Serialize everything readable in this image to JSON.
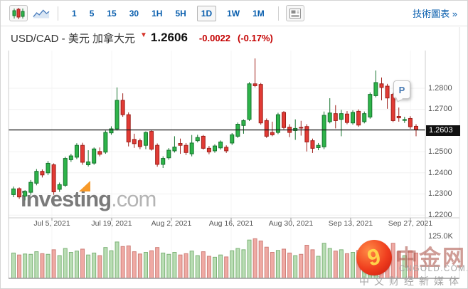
{
  "toolbar": {
    "chart_type_buttons": [
      {
        "name": "candlestick",
        "selected": true
      },
      {
        "name": "line-area",
        "selected": false
      }
    ],
    "intervals": [
      "1",
      "5",
      "15",
      "30",
      "1H",
      "5H",
      "1D",
      "1W",
      "1M"
    ],
    "selected_interval": "1D",
    "news_panel_button": "news-layout",
    "tech_chart_link": "技術圖表 »"
  },
  "quote": {
    "pair_title": "USD/CAD - 美元 加拿大元",
    "direction_arrow": "▼",
    "last_price": "1.2606",
    "change": "-0.0022",
    "change_pct": "(-0.17%)"
  },
  "watermarks": {
    "investing": {
      "part1": "investing",
      "part2": ".com"
    },
    "cngold": {
      "swirl": "9",
      "title": "中金网",
      "domain": "CNGOLD.COM.CN",
      "tagline": "中文财经新媒体"
    }
  },
  "chart_data": {
    "type": "candlestick",
    "title": "USD/CAD daily candlestick chart with volume",
    "current_price_label": "1.2603",
    "marker_label": "P",
    "y_axis_labels": [
      {
        "text": "1.2800",
        "price": 1.28
      },
      {
        "text": "1.2700",
        "price": 1.27
      },
      {
        "text": "1.2500",
        "price": 1.25
      },
      {
        "text": "1.2400",
        "price": 1.24
      },
      {
        "text": "1.2300",
        "price": 1.23
      },
      {
        "text": "1.2200",
        "price": 1.22
      }
    ],
    "price_gridlines": [
      1.28,
      1.27,
      1.26,
      1.25,
      1.24,
      1.23,
      1.22
    ],
    "ylim": [
      1.2195,
      1.2985
    ],
    "x_axis_labels": [
      {
        "text": "Jul 5, 2021"
      },
      {
        "text": "Jul 19, 2021"
      },
      {
        "text": "Aug 2, 2021"
      },
      {
        "text": "Aug 16, 2021"
      },
      {
        "text": "Aug 30, 2021"
      },
      {
        "text": "Sep 13, 2021"
      },
      {
        "text": "Sep 27, 2021"
      }
    ],
    "volume_axis_label": "125.0K",
    "current_price": 1.2603,
    "candle_order": [
      "open",
      "high",
      "low",
      "close",
      "volume_k"
    ],
    "candles": [
      [
        1.2297,
        1.2335,
        1.2285,
        1.2324,
        78
      ],
      [
        1.2325,
        1.2331,
        1.2277,
        1.2286,
        72
      ],
      [
        1.229,
        1.2318,
        1.227,
        1.2312,
        75
      ],
      [
        1.2308,
        1.2366,
        1.2296,
        1.2355,
        74
      ],
      [
        1.2351,
        1.2418,
        1.2341,
        1.2407,
        82
      ],
      [
        1.2407,
        1.2416,
        1.2378,
        1.239,
        76
      ],
      [
        1.24,
        1.2456,
        1.2389,
        1.2445,
        74
      ],
      [
        1.2438,
        1.2445,
        1.2296,
        1.231,
        88
      ],
      [
        1.2322,
        1.2354,
        1.231,
        1.2344,
        70
      ],
      [
        1.2341,
        1.2476,
        1.2333,
        1.2468,
        92
      ],
      [
        1.2462,
        1.249,
        1.2452,
        1.248,
        80
      ],
      [
        1.2474,
        1.254,
        1.2465,
        1.253,
        84
      ],
      [
        1.253,
        1.2542,
        1.2438,
        1.245,
        90
      ],
      [
        1.2438,
        1.2507,
        1.243,
        1.2452,
        72
      ],
      [
        1.2446,
        1.252,
        1.2438,
        1.2513,
        78
      ],
      [
        1.2501,
        1.252,
        1.2478,
        1.2488,
        70
      ],
      [
        1.2498,
        1.26,
        1.249,
        1.2591,
        95
      ],
      [
        1.2589,
        1.262,
        1.258,
        1.2608,
        85
      ],
      [
        1.2608,
        1.2804,
        1.26,
        1.2743,
        112
      ],
      [
        1.2743,
        1.2776,
        1.2665,
        1.2675,
        98
      ],
      [
        1.2675,
        1.2686,
        1.2525,
        1.2546,
        100
      ],
      [
        1.2558,
        1.2585,
        1.2518,
        1.2538,
        82
      ],
      [
        1.2552,
        1.2562,
        1.2512,
        1.2524,
        75
      ],
      [
        1.253,
        1.2596,
        1.2512,
        1.2591,
        80
      ],
      [
        1.2596,
        1.2601,
        1.2505,
        1.2512,
        85
      ],
      [
        1.253,
        1.2539,
        1.2429,
        1.244,
        95
      ],
      [
        1.244,
        1.2478,
        1.2423,
        1.2468,
        78
      ],
      [
        1.2471,
        1.2517,
        1.2462,
        1.2507,
        74
      ],
      [
        1.2504,
        1.2573,
        1.2496,
        1.2522,
        80
      ],
      [
        1.2539,
        1.2562,
        1.249,
        1.253,
        72
      ],
      [
        1.253,
        1.2541,
        1.2484,
        1.2496,
        76
      ],
      [
        1.249,
        1.2579,
        1.2478,
        1.2541,
        84
      ],
      [
        1.2552,
        1.258,
        1.2544,
        1.2567,
        70
      ],
      [
        1.2573,
        1.2579,
        1.251,
        1.2516,
        82
      ],
      [
        1.2516,
        1.2527,
        1.2488,
        1.2499,
        68
      ],
      [
        1.2504,
        1.2535,
        1.2495,
        1.2527,
        65
      ],
      [
        1.2518,
        1.2553,
        1.251,
        1.2546,
        72
      ],
      [
        1.2521,
        1.253,
        1.2494,
        1.2504,
        66
      ],
      [
        1.2541,
        1.2588,
        1.2532,
        1.258,
        85
      ],
      [
        1.2573,
        1.2638,
        1.2565,
        1.263,
        92
      ],
      [
        1.2624,
        1.2653,
        1.2585,
        1.2647,
        88
      ],
      [
        1.2653,
        1.2829,
        1.2645,
        1.2821,
        118
      ],
      [
        1.2821,
        1.2941,
        1.2805,
        1.2812,
        122
      ],
      [
        1.2818,
        1.2825,
        1.2628,
        1.2636,
        115
      ],
      [
        1.2647,
        1.2657,
        1.2565,
        1.2573,
        96
      ],
      [
        1.2591,
        1.2642,
        1.2573,
        1.258,
        80
      ],
      [
        1.2591,
        1.2684,
        1.2583,
        1.2675,
        86
      ],
      [
        1.2686,
        1.2692,
        1.2606,
        1.2614,
        90
      ],
      [
        1.2616,
        1.263,
        1.2569,
        1.2591,
        78
      ],
      [
        1.26,
        1.2653,
        1.2556,
        1.261,
        70
      ],
      [
        1.2615,
        1.2646,
        1.2576,
        1.2612,
        74
      ],
      [
        1.2619,
        1.263,
        1.2501,
        1.2546,
        102
      ],
      [
        1.2552,
        1.2562,
        1.2494,
        1.2516,
        88
      ],
      [
        1.2519,
        1.2541,
        1.2507,
        1.253,
        68
      ],
      [
        1.2523,
        1.269,
        1.2512,
        1.2672,
        108
      ],
      [
        1.2642,
        1.2753,
        1.2634,
        1.2683,
        92
      ],
      [
        1.268,
        1.272,
        1.261,
        1.2647,
        84
      ],
      [
        1.2653,
        1.2698,
        1.2573,
        1.268,
        88
      ],
      [
        1.2678,
        1.2692,
        1.263,
        1.2638,
        76
      ],
      [
        1.2636,
        1.2696,
        1.2628,
        1.2686,
        80
      ],
      [
        1.2691,
        1.27,
        1.2618,
        1.2626,
        86
      ],
      [
        1.2642,
        1.269,
        1.2634,
        1.268,
        74
      ],
      [
        1.2664,
        1.278,
        1.2656,
        1.2771,
        105
      ],
      [
        1.2765,
        1.2884,
        1.2757,
        1.2827,
        112
      ],
      [
        1.2821,
        1.2851,
        1.2743,
        1.2804,
        95
      ],
      [
        1.281,
        1.2821,
        1.2703,
        1.2754,
        90
      ],
      [
        1.2771,
        1.2778,
        1.264,
        1.2647,
        108
      ],
      [
        1.2667,
        1.2709,
        1.2642,
        1.266,
        82
      ],
      [
        1.2648,
        1.2665,
        1.2636,
        1.2652,
        70
      ],
      [
        1.2657,
        1.2668,
        1.2608,
        1.2618,
        85
      ],
      [
        1.262,
        1.263,
        1.2573,
        1.2603,
        78
      ]
    ],
    "volume_max_k": 125,
    "legend_position": "none",
    "grid": true,
    "colors": {
      "up_fill": "#2eb44a",
      "up_stroke": "#14732c",
      "down_fill": "#e23b35",
      "down_stroke": "#9e1f1a",
      "vol_up_fill": "#b9ddb4",
      "vol_up_stroke": "#7db377",
      "vol_down_fill": "#efaaa4",
      "vol_down_stroke": "#cf7f79",
      "price_line": "#1a1a1a",
      "grid_line": "#f0f0f0",
      "frame_line": "#cccccc",
      "watermark_gray": "#636363",
      "watermark_light": "#a8a8a8",
      "watermark_orange": "#f7941d"
    }
  }
}
